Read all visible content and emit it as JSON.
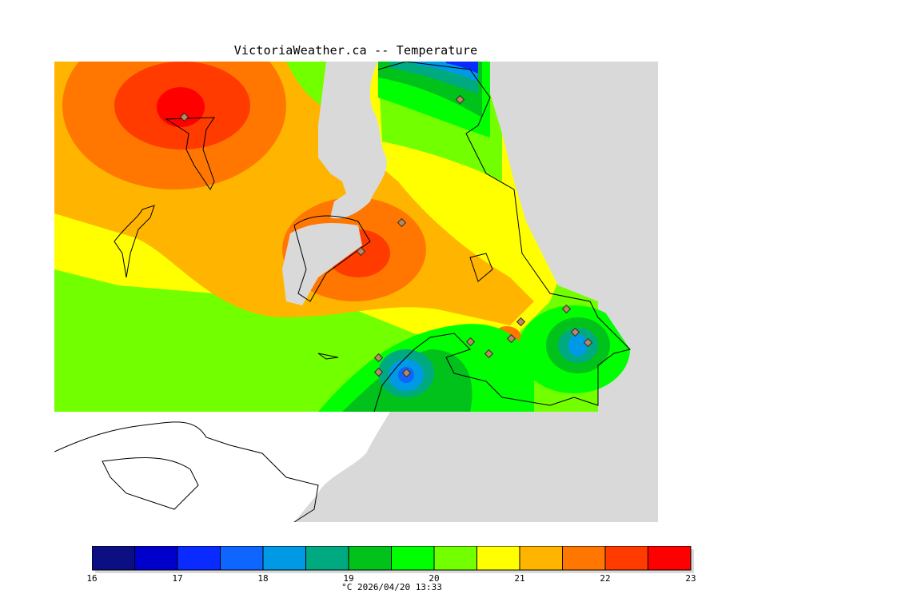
{
  "title": "VictoriaWeather.ca -- Temperature",
  "footer": "°C  2026/04/20 13:33",
  "colors": {
    "land_outside": "#d9d9d9",
    "water": "#ffffff",
    "coast": "#000000",
    "station": "#9a7f6a"
  },
  "colorbar": {
    "bins": [
      "#0c0f82",
      "#0000cc",
      "#0a2bff",
      "#0f66ff",
      "#0099e6",
      "#00aa80",
      "#00c21a",
      "#00ff00",
      "#72ff00",
      "#ffff00",
      "#ffb400",
      "#ff7700",
      "#ff3b00",
      "#ff0000"
    ],
    "ticks": [
      "16",
      "17",
      "18",
      "19",
      "20",
      "21",
      "22",
      "23"
    ]
  }
}
